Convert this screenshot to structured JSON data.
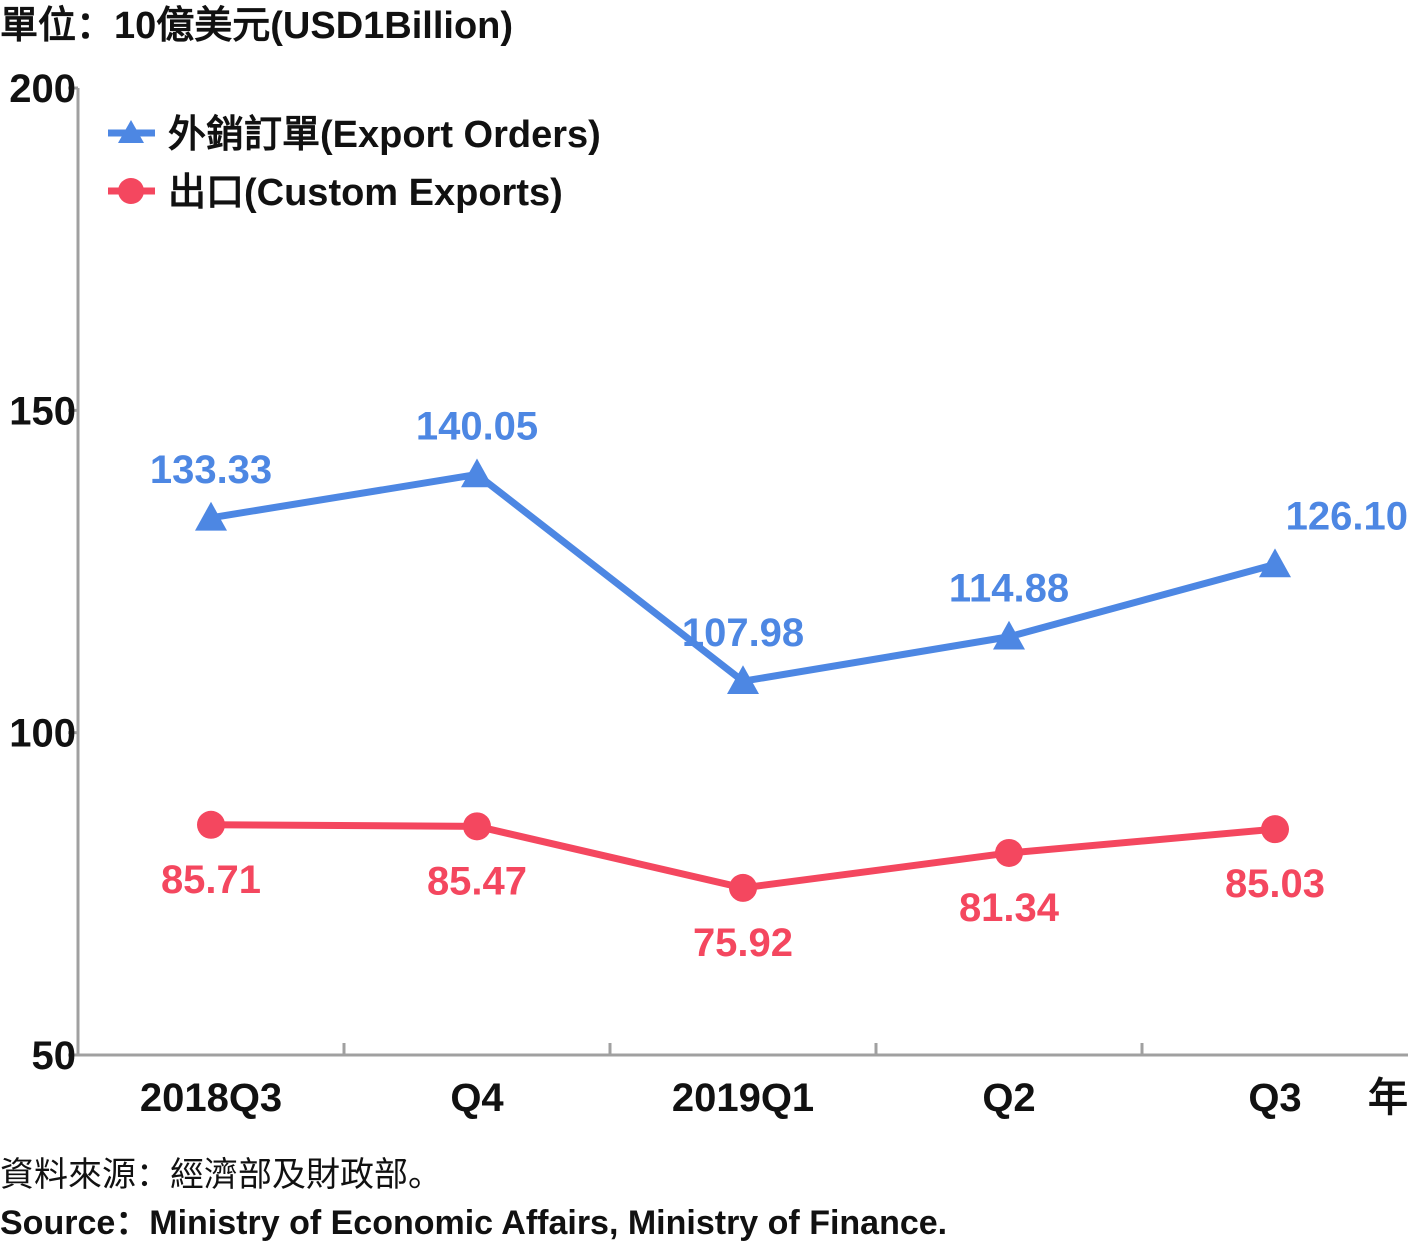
{
  "unit_label": "單位：10億美元(USD1Billion)",
  "source": {
    "zh": "資料來源：經濟部及財政部。",
    "en": "Source：Ministry of Economic Affairs, Ministry of Finance."
  },
  "chart_data": {
    "type": "line",
    "title": "",
    "xlabel": "年",
    "ylabel": "單位：10億美元(USD1Billion)",
    "ylim": [
      50,
      200
    ],
    "yticks": [
      50,
      100,
      150,
      200
    ],
    "categories": [
      "2018Q3",
      "Q4",
      "2019Q1",
      "Q2",
      "Q3"
    ],
    "grid": false,
    "legend_position": "top-left",
    "series": [
      {
        "name": "外銷訂單(Export Orders)",
        "color": "#4d87e3",
        "marker": "triangle",
        "values": [
          133.33,
          140.05,
          107.98,
          114.88,
          126.1
        ],
        "labels": [
          "133.33",
          "140.05",
          "107.98",
          "114.88",
          "126.10"
        ],
        "label_position": "above"
      },
      {
        "name": "出口(Custom Exports)",
        "color": "#f4475f",
        "marker": "circle",
        "values": [
          85.71,
          85.47,
          75.92,
          81.34,
          85.03
        ],
        "labels": [
          "85.71",
          "85.47",
          "75.92",
          "81.34",
          "85.03"
        ],
        "label_position": "below"
      }
    ]
  }
}
